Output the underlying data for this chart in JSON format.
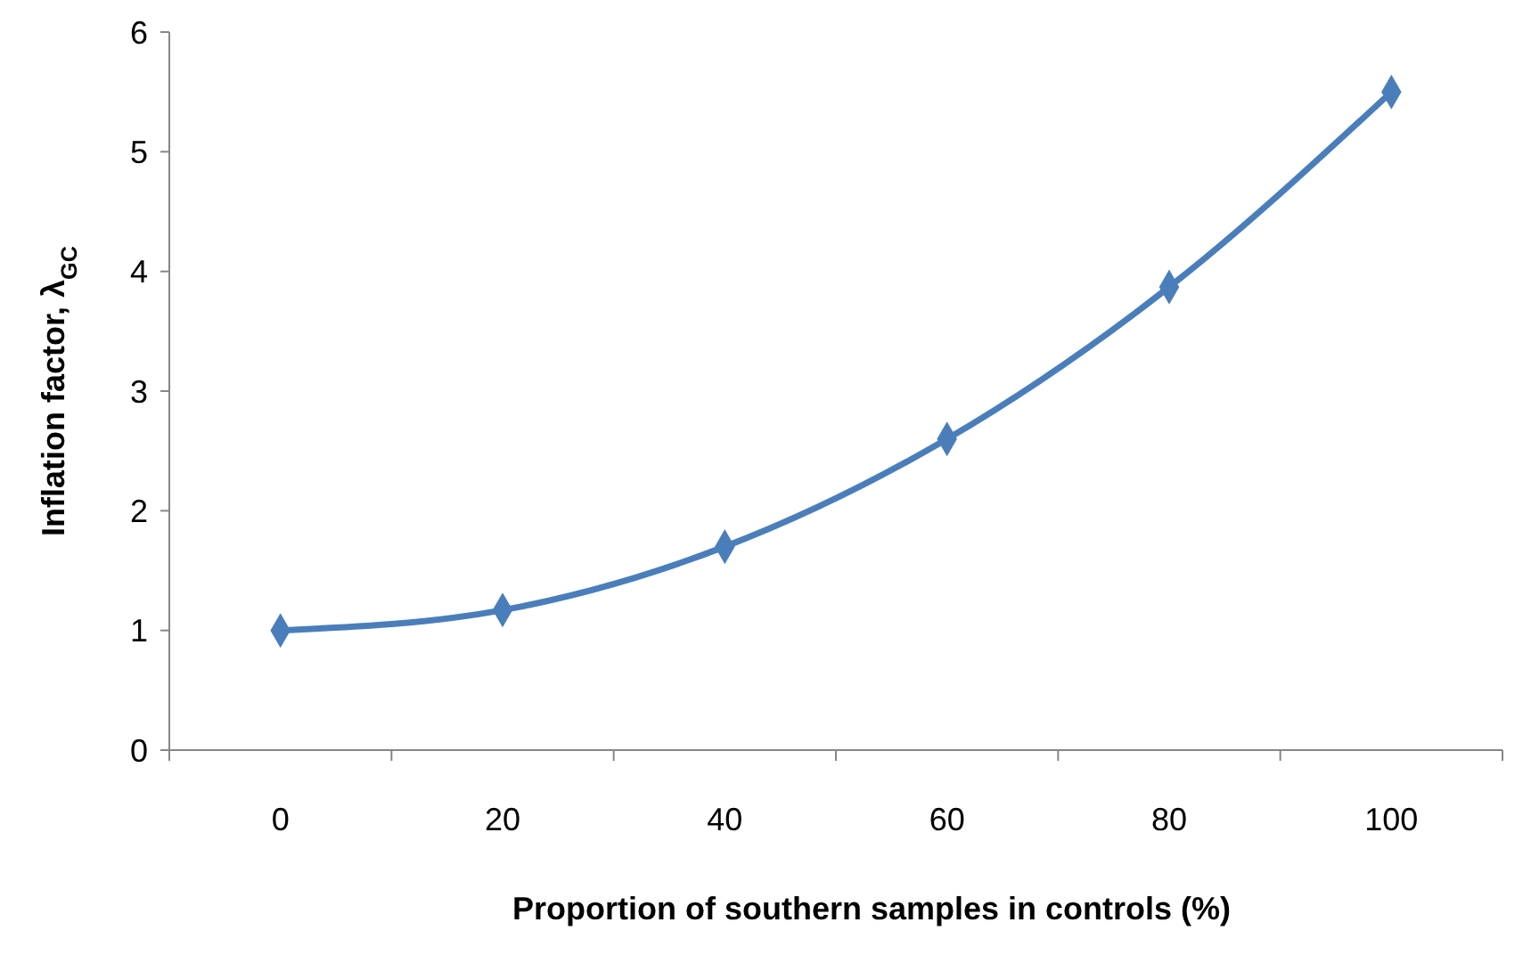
{
  "chart_data": {
    "type": "line",
    "xlabel": "Proportion of southern samples in controls (%)",
    "ylabel": "Inflation factor, λ$_{GC}$",
    "categories": [
      "0",
      "20",
      "40",
      "60",
      "80",
      "100"
    ],
    "series": [
      {
        "color": "#4a7ebb",
        "values": [
          1.0,
          1.17,
          1.7,
          2.6,
          3.87,
          5.5
        ]
      }
    ],
    "ylim": [
      0,
      6
    ],
    "yticks": [
      0,
      1,
      2,
      3,
      4,
      5,
      6
    ],
    "grid": false,
    "marker": "diamond",
    "line_style": "solid"
  }
}
